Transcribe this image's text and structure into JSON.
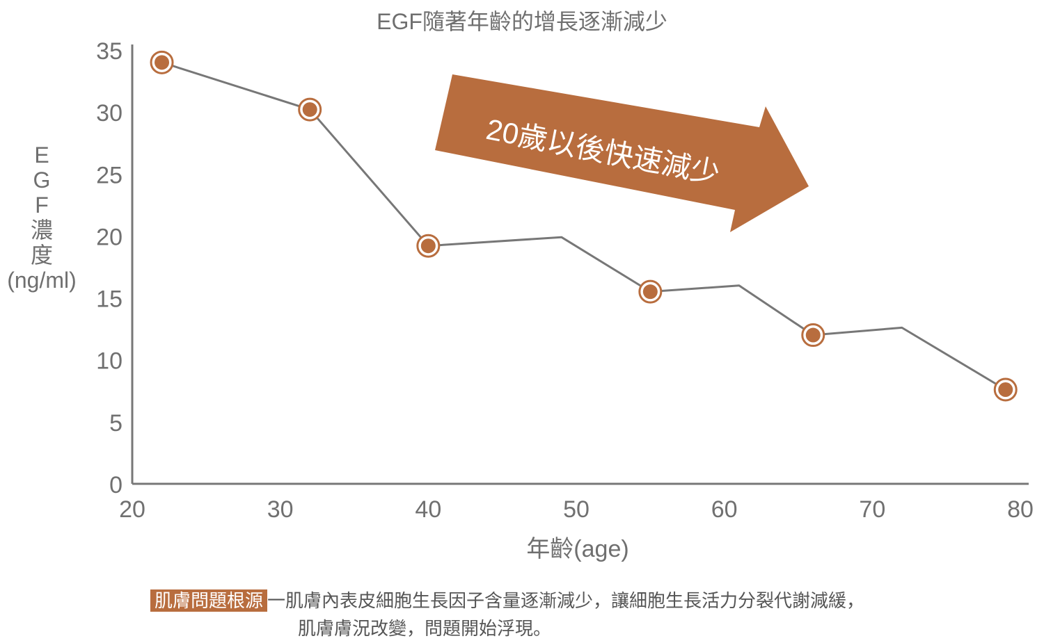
{
  "chart_data": {
    "type": "line",
    "title": "EGF隨著年齡的增長逐漸減少",
    "xlabel": "年齡(age)",
    "ylabel_lines": [
      "E",
      "G",
      "F",
      "濃",
      "度",
      "(ng/ml)"
    ],
    "xlim": [
      20,
      80
    ],
    "ylim": [
      0,
      35
    ],
    "x_ticks": [
      20,
      30,
      40,
      50,
      60,
      70,
      80
    ],
    "y_ticks": [
      0,
      5,
      10,
      15,
      20,
      25,
      30,
      35
    ],
    "series": [
      {
        "x": [
          22,
          32,
          40,
          49,
          55,
          61,
          66,
          72,
          79
        ],
        "y": [
          34.0,
          30.2,
          19.2,
          19.9,
          15.5,
          16.0,
          12.0,
          12.6,
          7.6
        ],
        "markers": [
          true,
          true,
          true,
          false,
          true,
          false,
          true,
          false,
          true
        ]
      }
    ],
    "annotation": "20歲以後快速減少",
    "colors": {
      "line": "#777777",
      "marker": "#b86d3e",
      "arrow": "#b86d3e",
      "axis": "#777777"
    }
  },
  "footer": {
    "badge": "肌膚問題根源",
    "line1": "一肌膚內表皮細胞生長因子含量逐漸減少，讓細胞生長活力分裂代謝減緩，",
    "line2": "肌膚膚況改變，問題開始浮現。"
  }
}
